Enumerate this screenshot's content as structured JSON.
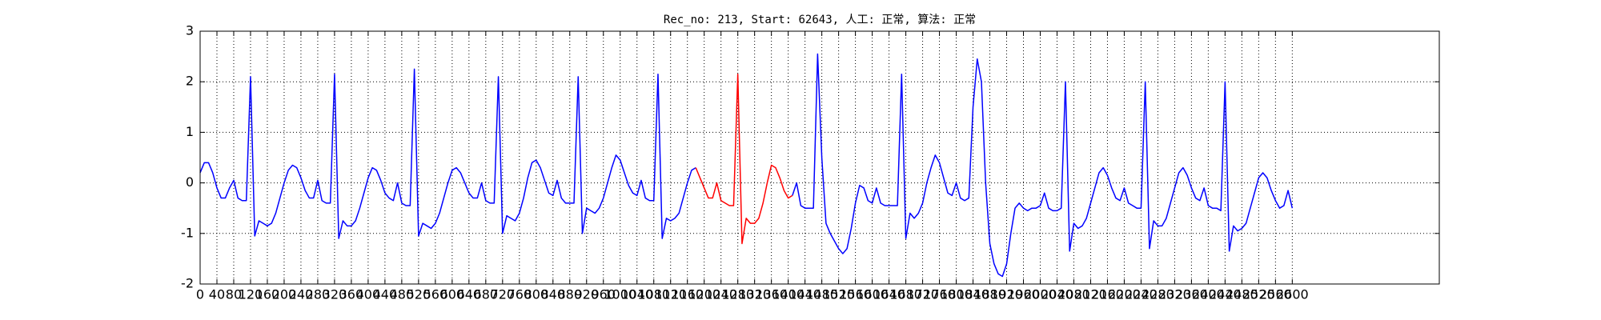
{
  "chart_data": {
    "type": "line",
    "title": "Rec_no: 213, Start: 62643, 人工: 正常, 算法: 正常",
    "xlim": [
      0,
      2950
    ],
    "ylim": [
      -2,
      3
    ],
    "xticks": [
      0,
      40,
      80,
      120,
      160,
      200,
      240,
      280,
      320,
      360,
      400,
      440,
      480,
      520,
      560,
      600,
      640,
      680,
      720,
      760,
      800,
      840,
      880,
      920,
      960,
      1000,
      1040,
      1080,
      1120,
      1160,
      1200,
      1240,
      1280,
      1320,
      1360,
      1400,
      1440,
      1480,
      1520,
      1560,
      1600,
      1640,
      1680,
      1720,
      1760,
      1800,
      1840,
      1880,
      1920,
      1960,
      2000,
      2040,
      2080,
      2120,
      2160,
      2200,
      2240,
      2280,
      2320,
      2360,
      2400,
      2440,
      2480,
      2520,
      2560,
      2600
    ],
    "yticks": [
      -2,
      -1,
      0,
      1,
      2,
      3
    ],
    "grid": true,
    "series": [
      {
        "color": "#0000ff",
        "x": [
          0,
          10,
          20,
          30,
          40,
          50,
          60,
          70,
          80,
          90,
          100,
          110,
          120,
          130,
          140,
          150,
          160,
          170,
          180,
          190,
          200,
          210,
          220,
          230,
          240,
          250,
          260,
          270,
          280,
          290,
          300,
          310,
          320,
          330,
          340,
          350,
          360,
          370,
          380,
          390,
          400,
          410,
          420,
          430,
          440,
          450,
          460,
          470,
          480,
          490,
          500,
          510,
          520,
          530,
          540,
          550,
          560,
          570,
          580,
          590,
          600,
          610,
          620,
          630,
          640,
          650,
          660,
          670,
          680,
          690,
          700,
          710,
          720,
          730,
          740,
          750,
          760,
          770,
          780,
          790,
          800,
          810,
          820,
          830,
          840,
          850,
          860,
          870,
          880,
          890,
          900,
          910,
          920,
          930,
          940,
          950,
          960,
          970,
          980,
          990,
          1000,
          1010,
          1020,
          1030,
          1040,
          1050,
          1060,
          1070,
          1080,
          1090,
          1100,
          1110,
          1120,
          1130,
          1140,
          1150,
          1160,
          1170,
          1180,
          1190,
          1200,
          1210,
          1220,
          1230,
          1240,
          1250,
          1260,
          1270,
          1280,
          1290,
          1300,
          1310,
          1320,
          1330,
          1340,
          1350,
          1360,
          1370,
          1380,
          1390,
          1400,
          1410,
          1420,
          1430,
          1440,
          1450,
          1460,
          1470,
          1480,
          1490,
          1500,
          1510,
          1520,
          1530,
          1540,
          1550,
          1560,
          1570,
          1580,
          1590,
          1600,
          1610,
          1620,
          1630,
          1640,
          1650,
          1660,
          1670,
          1680,
          1690,
          1700,
          1710,
          1720,
          1730,
          1740,
          1750,
          1760,
          1770,
          1780,
          1790,
          1800,
          1810,
          1820,
          1830,
          1840,
          1850,
          1860,
          1870,
          1880,
          1890,
          1900,
          1910,
          1920,
          1930,
          1940,
          1950,
          1960,
          1970,
          1980,
          1990,
          2000,
          2010,
          2020,
          2030,
          2040,
          2050,
          2060,
          2070,
          2080,
          2090,
          2100,
          2110,
          2120,
          2130,
          2140,
          2150,
          2160,
          2170,
          2180,
          2190,
          2200,
          2210,
          2220,
          2230,
          2240,
          2250,
          2260,
          2270,
          2280,
          2290,
          2300,
          2310,
          2320,
          2330,
          2340,
          2350,
          2360,
          2370,
          2380,
          2390,
          2400,
          2410,
          2420,
          2430,
          2440,
          2450,
          2460,
          2470,
          2480,
          2490,
          2500,
          2510,
          2520,
          2530,
          2540,
          2550,
          2560,
          2570,
          2580,
          2590,
          2600
        ],
        "values": [
          0.2,
          0.4,
          0.4,
          0.2,
          -0.1,
          -0.3,
          -0.3,
          -0.1,
          0.05,
          -0.3,
          -0.35,
          -0.35,
          2.1,
          -1.05,
          -0.75,
          -0.8,
          -0.85,
          -0.8,
          -0.6,
          -0.3,
          0.0,
          0.25,
          0.35,
          0.3,
          0.1,
          -0.15,
          -0.3,
          -0.3,
          0.05,
          -0.35,
          -0.4,
          -0.4,
          2.15,
          -1.1,
          -0.75,
          -0.85,
          -0.85,
          -0.75,
          -0.5,
          -0.2,
          0.1,
          0.3,
          0.25,
          0.05,
          -0.2,
          -0.3,
          -0.35,
          0.0,
          -0.4,
          -0.45,
          -0.45,
          2.25,
          -1.05,
          -0.8,
          -0.85,
          -0.9,
          -0.8,
          -0.6,
          -0.3,
          0.0,
          0.25,
          0.3,
          0.2,
          0.0,
          -0.2,
          -0.3,
          -0.3,
          0.0,
          -0.35,
          -0.4,
          -0.4,
          2.1,
          -1.0,
          -0.65,
          -0.7,
          -0.75,
          -0.6,
          -0.3,
          0.1,
          0.4,
          0.45,
          0.3,
          0.05,
          -0.2,
          -0.25,
          0.05,
          -0.3,
          -0.4,
          -0.4,
          -0.4,
          2.1,
          -1.0,
          -0.5,
          -0.55,
          -0.6,
          -0.5,
          -0.3,
          0.0,
          0.3,
          0.55,
          0.45,
          0.2,
          -0.05,
          -0.2,
          -0.25,
          0.05,
          -0.3,
          -0.35,
          -0.35,
          2.15,
          -1.1,
          -0.7,
          -0.75,
          -0.7,
          -0.6,
          -0.3,
          0.0,
          0.25,
          0.3,
          null,
          null,
          null,
          null,
          null,
          null,
          null,
          null,
          null,
          null,
          null,
          null,
          null,
          null,
          null,
          null,
          null,
          null,
          null,
          null,
          null,
          null,
          -0.25,
          0.0,
          -0.45,
          -0.5,
          -0.5,
          -0.5,
          2.55,
          0.5,
          -0.8,
          -1.0,
          -1.15,
          -1.3,
          -1.4,
          -1.3,
          -0.9,
          -0.4,
          -0.05,
          -0.1,
          -0.35,
          -0.4,
          -0.1,
          -0.4,
          -0.45,
          -0.45,
          -0.45,
          -0.45,
          2.15,
          -1.1,
          -0.6,
          -0.7,
          -0.6,
          -0.4,
          0.0,
          0.3,
          0.55,
          0.4,
          0.1,
          -0.2,
          -0.25,
          0.0,
          -0.3,
          -0.35,
          -0.3,
          1.5,
          2.45,
          2.0,
          0.0,
          -1.2,
          -1.6,
          -1.8,
          -1.85,
          -1.6,
          -1.0,
          -0.5,
          -0.4,
          -0.5,
          -0.55,
          -0.5,
          -0.5,
          -0.45,
          -0.2,
          -0.5,
          -0.55,
          -0.55,
          -0.5,
          2.0,
          -1.35,
          -0.8,
          -0.9,
          -0.85,
          -0.7,
          -0.4,
          -0.1,
          0.2,
          0.3,
          0.15,
          -0.1,
          -0.3,
          -0.35,
          -0.1,
          -0.4,
          -0.45,
          -0.5,
          -0.5,
          2.0,
          -1.3,
          -0.75,
          -0.85,
          -0.85,
          -0.7,
          -0.4,
          -0.1,
          0.2,
          0.3,
          0.15,
          -0.1,
          -0.3,
          -0.35,
          -0.1,
          -0.45,
          -0.5,
          -0.5,
          -0.55,
          2.0,
          -1.35,
          -0.85,
          -0.95,
          -0.9,
          -0.8,
          -0.5,
          -0.2,
          0.1,
          0.2,
          0.1,
          -0.15,
          -0.35,
          -0.5,
          -0.45,
          -0.15,
          -0.5
        ]
      },
      {
        "color": "#ff0000",
        "x": [
          1180,
          1190,
          1200,
          1210,
          1220,
          1230,
          1240,
          1250,
          1260,
          1270,
          1280,
          1290,
          1300,
          1310,
          1320,
          1330,
          1340,
          1350,
          1360,
          1370,
          1380,
          1390,
          1400,
          1410
        ],
        "values": [
          0.3,
          0.1,
          -0.1,
          -0.3,
          -0.3,
          0.0,
          -0.35,
          -0.4,
          -0.45,
          -0.45,
          2.15,
          -1.2,
          -0.7,
          -0.8,
          -0.8,
          -0.7,
          -0.4,
          0.0,
          0.35,
          0.3,
          0.1,
          -0.15,
          -0.3,
          -0.25
        ]
      }
    ]
  }
}
